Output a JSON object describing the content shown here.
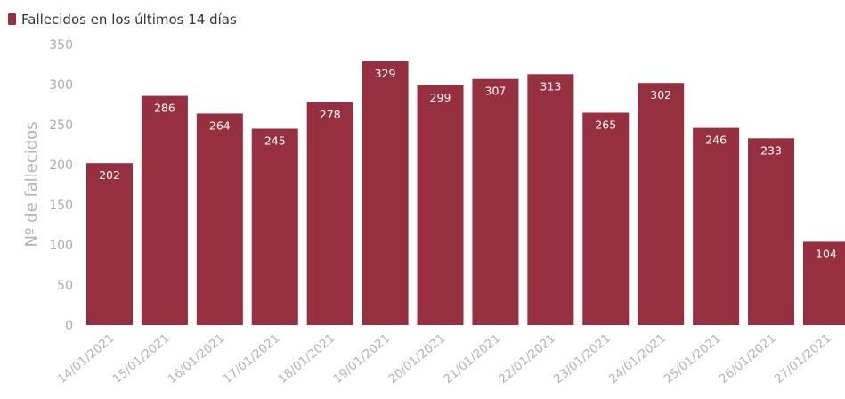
{
  "chart_data": {
    "type": "bar",
    "legend": {
      "label": "Fallecidos en los últimos 14 días",
      "placement": "top-left"
    },
    "ylabel": "Nº de fallecidos",
    "xlabel": "",
    "ylim": [
      0,
      350
    ],
    "yticks": [
      0,
      50,
      100,
      150,
      200,
      250,
      300,
      350
    ],
    "grid": false,
    "bar_color": "#962f3f",
    "categories": [
      "14/01/2021",
      "15/01/2021",
      "16/01/2021",
      "17/01/2021",
      "18/01/2021",
      "19/01/2021",
      "20/01/2021",
      "21/01/2021",
      "22/01/2021",
      "23/01/2021",
      "24/01/2021",
      "25/01/2021",
      "26/01/2021",
      "27/01/2021"
    ],
    "values": [
      202,
      286,
      264,
      245,
      278,
      329,
      299,
      307,
      313,
      265,
      302,
      246,
      233,
      104
    ]
  }
}
